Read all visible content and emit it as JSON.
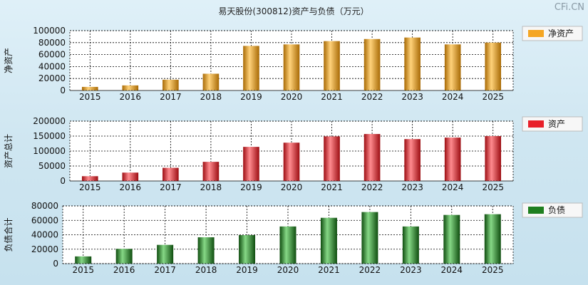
{
  "header": {
    "title": "易天股份(300812)资产与负债（万元）",
    "brand": "CFi.CN"
  },
  "chart_data": [
    {
      "type": "bar",
      "ylabel": "净资产",
      "legend": "净资产",
      "color": "#f5a623",
      "categories": [
        "2015",
        "2016",
        "2017",
        "2018",
        "2019",
        "2020",
        "2021",
        "2022",
        "2023",
        "2024",
        "2025"
      ],
      "values": [
        6000,
        8500,
        18000,
        28000,
        74500,
        77000,
        82500,
        86000,
        88500,
        77000,
        80000
      ],
      "ylim": [
        0,
        100000
      ],
      "yticks": [
        "100000",
        "80000",
        "60000",
        "40000",
        "20000",
        "0"
      ],
      "grid": true,
      "legend_position": "right"
    },
    {
      "type": "bar",
      "ylabel": "资产总计",
      "legend": "资产",
      "color": "#e8202a",
      "categories": [
        "2015",
        "2016",
        "2017",
        "2018",
        "2019",
        "2020",
        "2021",
        "2022",
        "2023",
        "2024",
        "2025"
      ],
      "values": [
        16000,
        28000,
        44000,
        64000,
        114000,
        128000,
        149000,
        157000,
        140000,
        145000,
        150000
      ],
      "ylim": [
        0,
        200000
      ],
      "yticks": [
        "200000",
        "150000",
        "100000",
        "50000",
        "0"
      ],
      "grid": true,
      "legend_position": "right"
    },
    {
      "type": "bar",
      "ylabel": "负债合计",
      "legend": "负债",
      "color": "#1f7f1f",
      "categories": [
        "2015",
        "2016",
        "2017",
        "2018",
        "2019",
        "2020",
        "2021",
        "2022",
        "2023",
        "2024",
        "2025"
      ],
      "values": [
        10000,
        20500,
        26000,
        36500,
        39500,
        51500,
        63500,
        71500,
        51500,
        67500,
        68500
      ],
      "ylim": [
        0,
        80000
      ],
      "yticks": [
        "80000",
        "60000",
        "40000",
        "20000",
        "0"
      ],
      "grid": true,
      "legend_position": "right"
    }
  ]
}
